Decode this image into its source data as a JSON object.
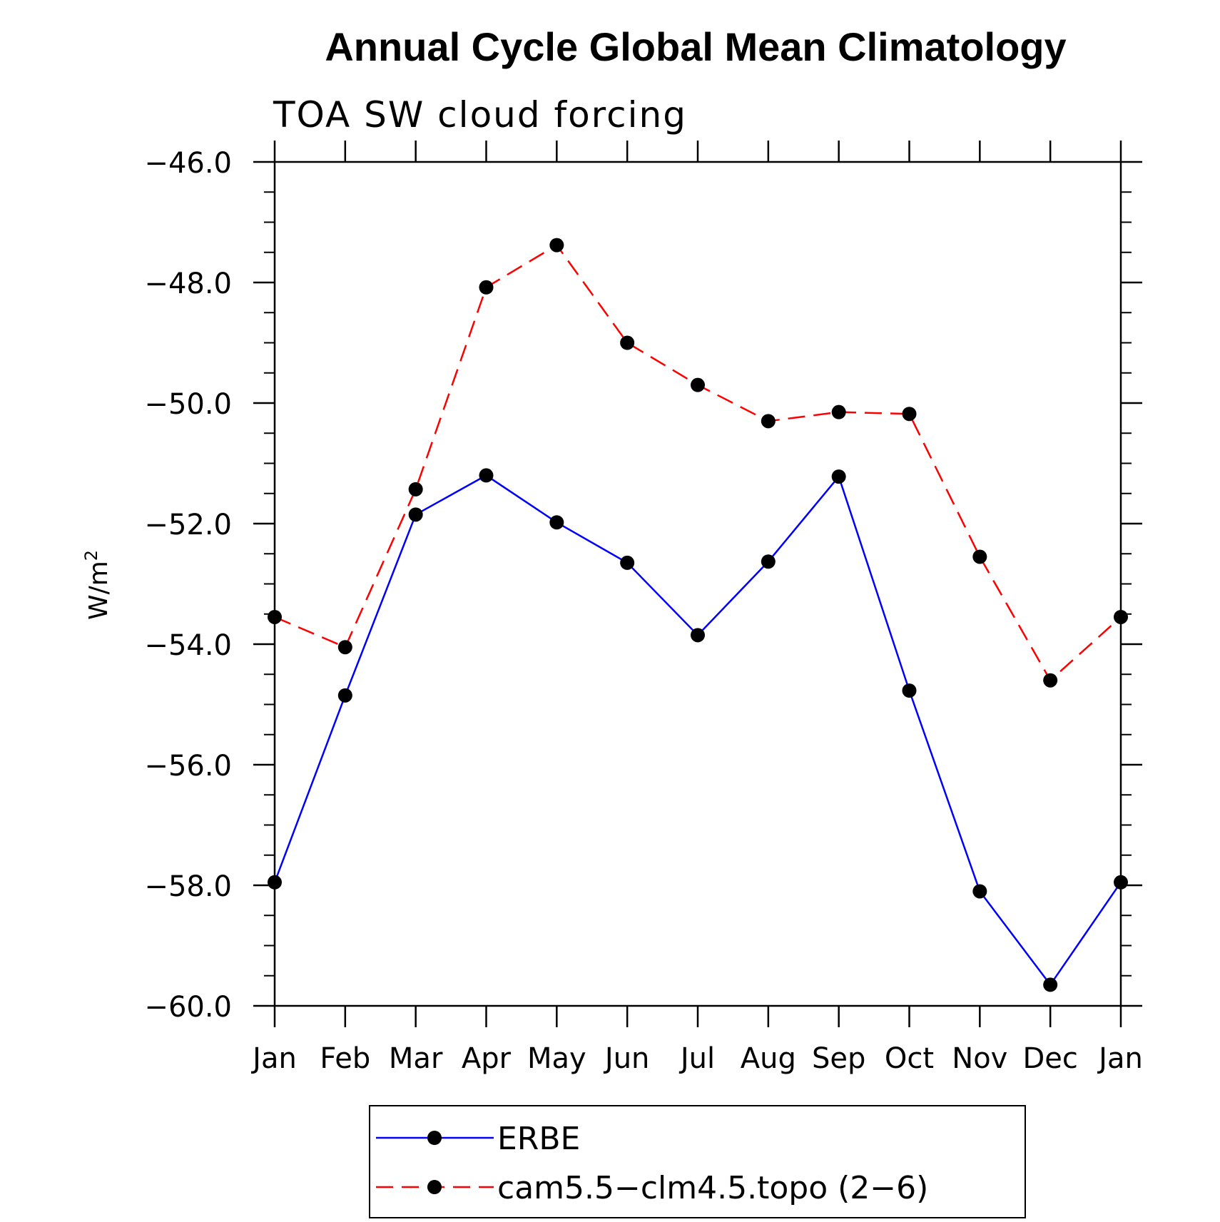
{
  "chart_data": {
    "type": "line",
    "title": "Annual Cycle Global Mean Climatology",
    "subtitle": "TOA SW cloud forcing",
    "ylabel_base": "W/m",
    "ylabel_sup": "2",
    "xlabel": "",
    "ylim": [
      -60,
      -46
    ],
    "y_tick_step": 2,
    "y_minor_step": 0.5,
    "y_tick_labels": [
      "-60.0",
      "-58.0",
      "-56.0",
      "-54.0",
      "-52.0",
      "-50.0",
      "-48.0",
      "-46.0"
    ],
    "categories": [
      "Jan",
      "Feb",
      "Mar",
      "Apr",
      "May",
      "Jun",
      "Jul",
      "Aug",
      "Sep",
      "Oct",
      "Nov",
      "Dec",
      "Jan"
    ],
    "grid": false,
    "legend_position": "bottom",
    "series": [
      {
        "name": "ERBE",
        "color": "#0000ff",
        "dash": "solid",
        "marker": "filled-circle",
        "values": [
          -57.95,
          -54.85,
          -51.85,
          -51.2,
          -51.98,
          -52.65,
          -53.85,
          -52.63,
          -51.22,
          -54.77,
          -58.1,
          -59.65,
          -57.95
        ]
      },
      {
        "name": "cam5.5−clm4.5.topo (2−6)",
        "color": "#ff0000",
        "dash": "dashed",
        "marker": "filled-circle",
        "values": [
          -53.55,
          -54.05,
          -51.43,
          -48.08,
          -47.38,
          -49.0,
          -49.7,
          -50.3,
          -50.15,
          -50.18,
          -52.55,
          -54.6,
          -53.55
        ]
      }
    ]
  }
}
